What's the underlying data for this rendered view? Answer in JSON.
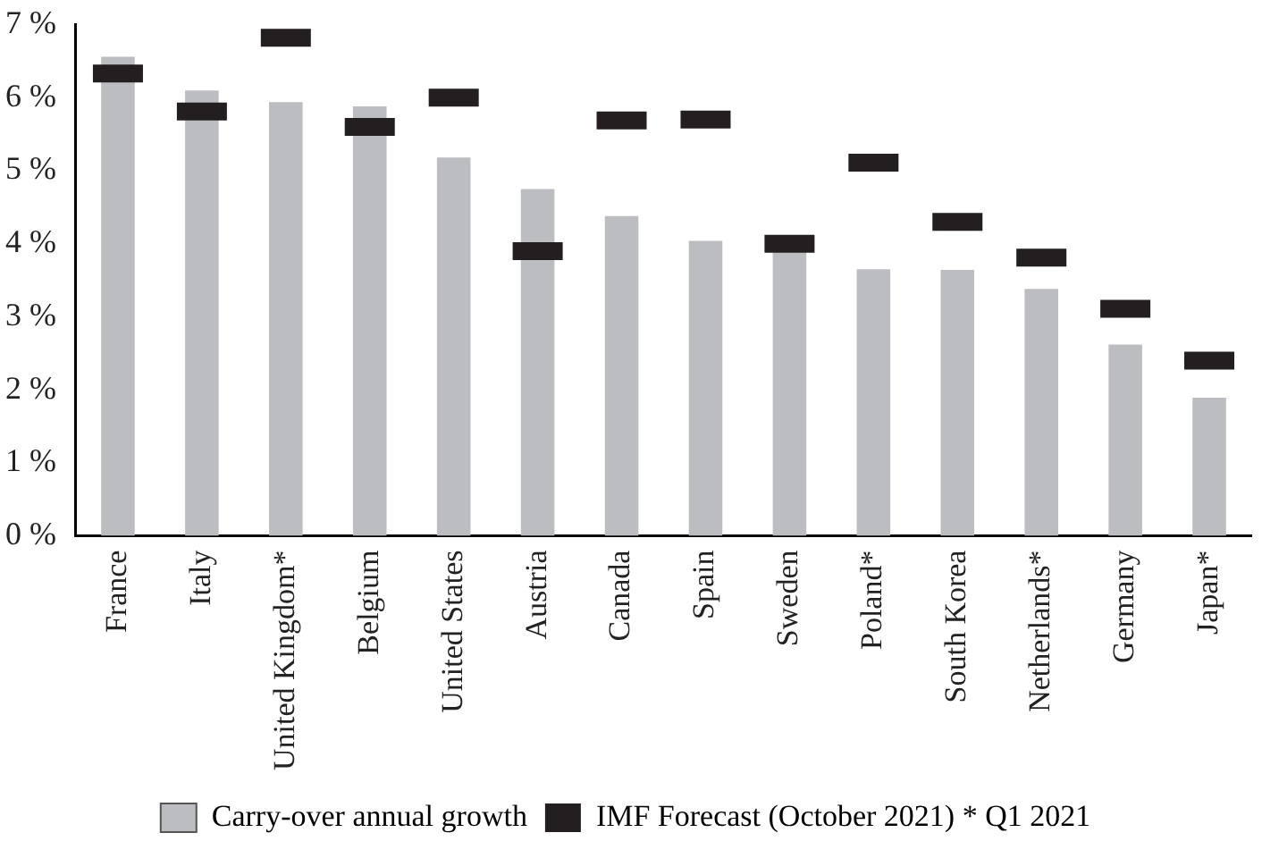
{
  "chart_data": {
    "type": "bar",
    "categories": [
      "France",
      "Italy",
      "United Kingdom*",
      "Belgium",
      "United States",
      "Austria",
      "Canada",
      "Spain",
      "Sweden",
      "Poland*",
      "South Korea",
      "Netherlands*",
      "Germany",
      "Japan*"
    ],
    "series": [
      {
        "name": "Carry-over annual growth",
        "color": "#bcbdc0",
        "values": [
          6.56,
          6.1,
          5.94,
          5.88,
          5.18,
          4.75,
          4.38,
          4.04,
          3.9,
          3.65,
          3.64,
          3.38,
          2.62,
          1.89
        ]
      },
      {
        "name": "IMF Forecast (October 2021) * Q1 2021",
        "type": "scatter",
        "color": "#231f20",
        "x": [
          "France",
          "Italy",
          "United Kingdom*",
          "Belgium",
          "United States",
          "Austria",
          "Canada",
          "Spain",
          "Sweden",
          "Poland*",
          "South Korea",
          "Netherlands*",
          "Germany",
          "Japan*"
        ],
        "values": [
          6.33,
          5.81,
          6.82,
          5.6,
          6.0,
          3.9,
          5.69,
          5.7,
          4.0,
          5.11,
          4.3,
          3.81,
          3.11,
          2.4
        ]
      }
    ],
    "ylim": [
      0,
      7
    ],
    "yticks": [
      {
        "value": 0,
        "label": "0 %"
      },
      {
        "value": 1,
        "label": "1 %"
      },
      {
        "value": 2,
        "label": "2 %"
      },
      {
        "value": 3,
        "label": "3 %"
      },
      {
        "value": 4,
        "label": "4 %"
      },
      {
        "value": 5,
        "label": "5 %"
      },
      {
        "value": 6,
        "label": "6 %"
      },
      {
        "value": 7,
        "label": "7 %"
      }
    ],
    "grid": false,
    "legend": "bottom"
  }
}
